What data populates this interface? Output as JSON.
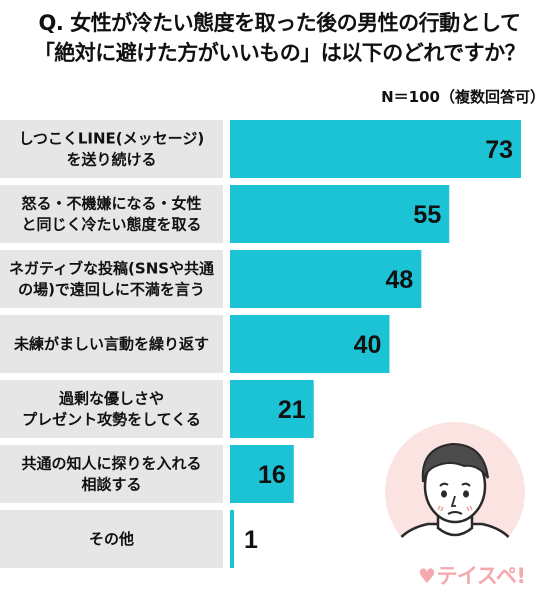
{
  "title_line1": "Q. 女性が冷たい態度を取った後の男性の行動として",
  "title_line2": "「絶対に避けた方がいいもの」は以下のどれですか？",
  "note": "N＝100（複数回答可）",
  "logo_text": "テイスペ!",
  "colors": {
    "bar": "#1cc3d4",
    "label_bg": "#e6e6e6",
    "logo": "#f3a9ad",
    "illust_circle": "#fae3e1"
  },
  "chart_data": {
    "type": "bar",
    "orientation": "horizontal",
    "categories": [
      [
        "しつこくLINE(メッセージ)",
        "を送り続ける"
      ],
      [
        "怒る・不機嫌になる・女性",
        "と同じく冷たい態度を取る"
      ],
      [
        "ネガティブな投稿(SNSや共通",
        "の場)で遠回しに不満を言う"
      ],
      [
        "未練がましい言動を繰り返す"
      ],
      [
        "過剰な優しさや",
        "プレゼント攻勢をしてくる"
      ],
      [
        "共通の知人に探りを入れる",
        "相談する"
      ],
      [
        "その他"
      ]
    ],
    "values": [
      73,
      55,
      48,
      40,
      21,
      16,
      1
    ],
    "xlim": [
      0,
      73
    ],
    "grid": false,
    "data_labels": true
  }
}
